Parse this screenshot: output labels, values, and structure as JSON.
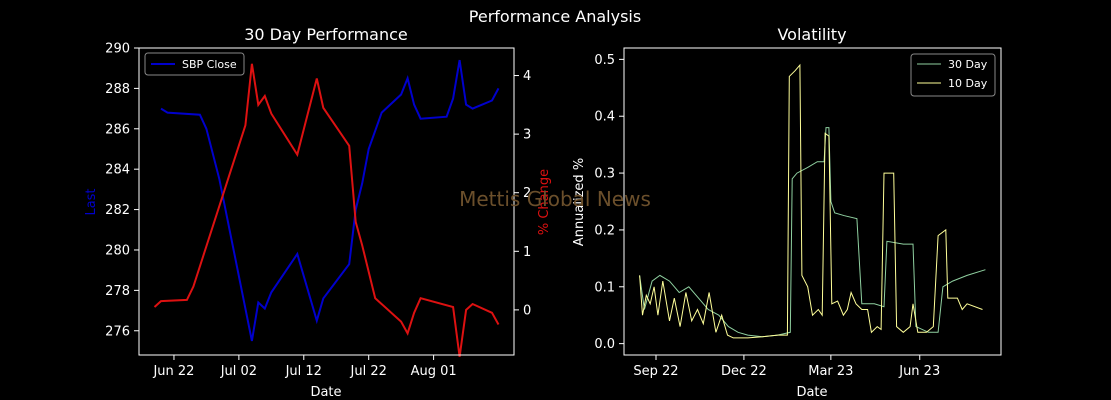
{
  "suptitle": "Performance Analysis",
  "watermark": "Mettis Global News",
  "colors": {
    "suptitle": "#f5a030",
    "axis": "#ffffff",
    "last": "#0000cc",
    "pct": "#dd1111",
    "v30": "#8fd0a0",
    "v10": "#ffff99",
    "watermark": "#6b4f2b"
  },
  "chart_data": [
    {
      "type": "line",
      "title": "30 Day Performance",
      "xlabel": "Date",
      "ylabel": "Last",
      "y2label": "% Change",
      "ylim": [
        274.8,
        290.0
      ],
      "y2lim": [
        -0.77,
        4.47
      ],
      "xticks": [
        "Jun 22",
        "Jul 02",
        "Jul 12",
        "Jul 22",
        "Aug 01"
      ],
      "yticks": [
        276,
        278,
        280,
        282,
        284,
        286,
        288,
        290
      ],
      "y2ticks": [
        0,
        1,
        2,
        3,
        4
      ],
      "legend": {
        "position": "top-left",
        "entries": [
          "SBP Close"
        ]
      },
      "series": [
        {
          "name": "SBP Close",
          "axis": "left",
          "points": [
            [
              "2023-06-20",
              287.0
            ],
            [
              "2023-06-21",
              286.8
            ],
            [
              "2023-06-26",
              286.7
            ],
            [
              "2023-06-27",
              286.0
            ],
            [
              "2023-06-29",
              283.5
            ],
            [
              "2023-07-04",
              275.5
            ],
            [
              "2023-07-05",
              277.4
            ],
            [
              "2023-07-06",
              277.1
            ],
            [
              "2023-07-07",
              277.9
            ],
            [
              "2023-07-11",
              279.8
            ],
            [
              "2023-07-14",
              276.5
            ],
            [
              "2023-07-15",
              277.6
            ],
            [
              "2023-07-19",
              279.3
            ],
            [
              "2023-07-20",
              282.0
            ],
            [
              "2023-07-21",
              283.3
            ],
            [
              "2023-07-22",
              285.0
            ],
            [
              "2023-07-24",
              286.8
            ],
            [
              "2023-07-27",
              287.7
            ],
            [
              "2023-07-28",
              288.5
            ],
            [
              "2023-07-29",
              287.2
            ],
            [
              "2023-07-30",
              286.5
            ],
            [
              "2023-08-03",
              286.6
            ],
            [
              "2023-08-04",
              287.5
            ],
            [
              "2023-08-05",
              289.4
            ],
            [
              "2023-08-06",
              287.2
            ],
            [
              "2023-08-07",
              287.0
            ],
            [
              "2023-08-10",
              287.4
            ],
            [
              "2023-08-11",
              288.0
            ]
          ]
        },
        {
          "name": "",
          "axis": "right",
          "points": [
            [
              "2023-06-19",
              0.05
            ],
            [
              "2023-06-20",
              0.15
            ],
            [
              "2023-06-24",
              0.17
            ],
            [
              "2023-06-25",
              0.4
            ],
            [
              "2023-07-03",
              3.15
            ],
            [
              "2023-07-04",
              4.2
            ],
            [
              "2023-07-05",
              3.5
            ],
            [
              "2023-07-06",
              3.65
            ],
            [
              "2023-07-07",
              3.35
            ],
            [
              "2023-07-11",
              2.65
            ],
            [
              "2023-07-14",
              3.95
            ],
            [
              "2023-07-15",
              3.45
            ],
            [
              "2023-07-19",
              2.8
            ],
            [
              "2023-07-20",
              1.5
            ],
            [
              "2023-07-21",
              1.1
            ],
            [
              "2023-07-23",
              0.2
            ],
            [
              "2023-07-27",
              -0.2
            ],
            [
              "2023-07-28",
              -0.4
            ],
            [
              "2023-07-29",
              -0.05
            ],
            [
              "2023-07-30",
              0.2
            ],
            [
              "2023-08-04",
              0.05
            ],
            [
              "2023-08-05",
              -0.8
            ],
            [
              "2023-08-06",
              0.0
            ],
            [
              "2023-08-07",
              0.1
            ],
            [
              "2023-08-10",
              -0.05
            ],
            [
              "2023-08-11",
              -0.25
            ]
          ]
        }
      ]
    },
    {
      "type": "line",
      "title": "Volatility",
      "xlabel": "Date",
      "ylabel": "Annualized %",
      "ylim": [
        -0.02,
        0.52
      ],
      "xticks": [
        "Sep 22",
        "Dec 22",
        "Mar 23",
        "Jun 23"
      ],
      "yticks": [
        0.0,
        0.1,
        0.2,
        0.3,
        0.4,
        0.5
      ],
      "legend": {
        "position": "top-right",
        "entries": [
          "30 Day",
          "10 Day"
        ]
      },
      "series": [
        {
          "name": "30 Day",
          "points": [
            [
              "2022-08-15",
              0.12
            ],
            [
              "2022-08-20",
              0.06
            ],
            [
              "2022-08-28",
              0.11
            ],
            [
              "2022-09-05",
              0.12
            ],
            [
              "2022-09-15",
              0.11
            ],
            [
              "2022-09-25",
              0.09
            ],
            [
              "2022-10-05",
              0.1
            ],
            [
              "2022-10-15",
              0.08
            ],
            [
              "2022-10-25",
              0.06
            ],
            [
              "2022-11-05",
              0.05
            ],
            [
              "2022-11-15",
              0.03
            ],
            [
              "2022-11-25",
              0.02
            ],
            [
              "2022-12-05",
              0.015
            ],
            [
              "2022-12-20",
              0.012
            ],
            [
              "2023-01-05",
              0.015
            ],
            [
              "2023-01-18",
              0.02
            ],
            [
              "2023-01-20",
              0.29
            ],
            [
              "2023-01-25",
              0.3
            ],
            [
              "2023-02-05",
              0.31
            ],
            [
              "2023-02-15",
              0.32
            ],
            [
              "2023-02-22",
              0.32
            ],
            [
              "2023-02-24",
              0.38
            ],
            [
              "2023-02-27",
              0.38
            ],
            [
              "2023-03-01",
              0.25
            ],
            [
              "2023-03-05",
              0.23
            ],
            [
              "2023-03-15",
              0.225
            ],
            [
              "2023-03-28",
              0.22
            ],
            [
              "2023-04-02",
              0.07
            ],
            [
              "2023-04-15",
              0.07
            ],
            [
              "2023-04-25",
              0.065
            ],
            [
              "2023-04-28",
              0.18
            ],
            [
              "2023-05-15",
              0.175
            ],
            [
              "2023-05-25",
              0.175
            ],
            [
              "2023-05-28",
              0.03
            ],
            [
              "2023-06-10",
              0.02
            ],
            [
              "2023-06-20",
              0.02
            ],
            [
              "2023-06-25",
              0.1
            ],
            [
              "2023-07-05",
              0.11
            ],
            [
              "2023-07-20",
              0.12
            ],
            [
              "2023-08-08",
              0.13
            ]
          ]
        },
        {
          "name": "10 Day",
          "points": [
            [
              "2022-08-15",
              0.12
            ],
            [
              "2022-08-18",
              0.05
            ],
            [
              "2022-08-22",
              0.085
            ],
            [
              "2022-08-26",
              0.07
            ],
            [
              "2022-08-30",
              0.1
            ],
            [
              "2022-09-03",
              0.05
            ],
            [
              "2022-09-08",
              0.11
            ],
            [
              "2022-09-15",
              0.04
            ],
            [
              "2022-09-20",
              0.08
            ],
            [
              "2022-09-26",
              0.03
            ],
            [
              "2022-10-02",
              0.09
            ],
            [
              "2022-10-08",
              0.04
            ],
            [
              "2022-10-14",
              0.06
            ],
            [
              "2022-10-20",
              0.035
            ],
            [
              "2022-10-26",
              0.09
            ],
            [
              "2022-11-02",
              0.02
            ],
            [
              "2022-11-08",
              0.05
            ],
            [
              "2022-11-14",
              0.015
            ],
            [
              "2022-11-20",
              0.01
            ],
            [
              "2022-12-05",
              0.01
            ],
            [
              "2022-12-20",
              0.012
            ],
            [
              "2023-01-05",
              0.015
            ],
            [
              "2023-01-15",
              0.015
            ],
            [
              "2023-01-17",
              0.47
            ],
            [
              "2023-01-23",
              0.48
            ],
            [
              "2023-01-28",
              0.49
            ],
            [
              "2023-01-30",
              0.12
            ],
            [
              "2023-02-05",
              0.1
            ],
            [
              "2023-02-10",
              0.05
            ],
            [
              "2023-02-16",
              0.06
            ],
            [
              "2023-02-20",
              0.05
            ],
            [
              "2023-02-23",
              0.37
            ],
            [
              "2023-02-27",
              0.365
            ],
            [
              "2023-03-02",
              0.07
            ],
            [
              "2023-03-08",
              0.075
            ],
            [
              "2023-03-14",
              0.05
            ],
            [
              "2023-03-18",
              0.06
            ],
            [
              "2023-03-22",
              0.09
            ],
            [
              "2023-03-27",
              0.07
            ],
            [
              "2023-04-02",
              0.06
            ],
            [
              "2023-04-08",
              0.06
            ],
            [
              "2023-04-12",
              0.02
            ],
            [
              "2023-04-18",
              0.03
            ],
            [
              "2023-04-22",
              0.025
            ],
            [
              "2023-04-25",
              0.3
            ],
            [
              "2023-05-05",
              0.3
            ],
            [
              "2023-05-08",
              0.03
            ],
            [
              "2023-05-15",
              0.02
            ],
            [
              "2023-05-22",
              0.03
            ],
            [
              "2023-05-25",
              0.07
            ],
            [
              "2023-05-30",
              0.02
            ],
            [
              "2023-06-08",
              0.02
            ],
            [
              "2023-06-15",
              0.03
            ],
            [
              "2023-06-20",
              0.19
            ],
            [
              "2023-06-28",
              0.2
            ],
            [
              "2023-06-30",
              0.08
            ],
            [
              "2023-07-10",
              0.08
            ],
            [
              "2023-07-15",
              0.06
            ],
            [
              "2023-07-20",
              0.07
            ],
            [
              "2023-08-05",
              0.06
            ]
          ]
        }
      ]
    }
  ]
}
